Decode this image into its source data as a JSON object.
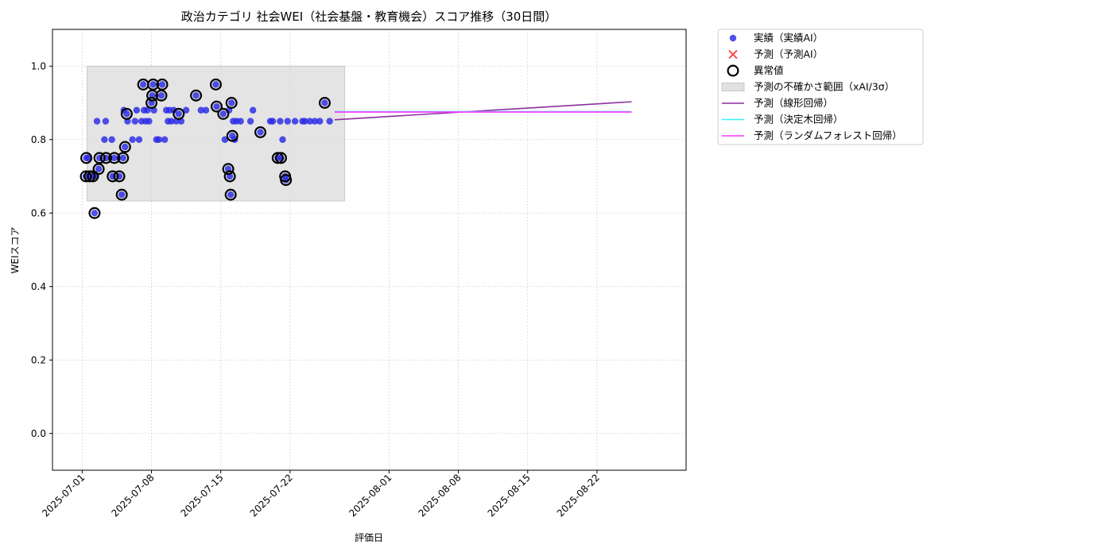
{
  "chart_data": {
    "type": "scatter",
    "title": "政治カテゴリ 社会WEI（社会基盤・教育機会）スコア推移（30日間）",
    "xlabel": "評価日",
    "ylabel": "WEIスコア",
    "xlim": [
      "2025-06-28",
      "2025-08-31"
    ],
    "ylim": [
      -0.1,
      1.1
    ],
    "x_ticks": [
      "2025-07-01",
      "2025-07-08",
      "2025-07-15",
      "2025-07-22",
      "2025-08-01",
      "2025-08-08",
      "2025-08-15",
      "2025-08-22"
    ],
    "y_ticks": [
      0.0,
      0.2,
      0.4,
      0.6,
      0.8,
      1.0
    ],
    "grid": true,
    "legend_position": "outside-top-right",
    "colors": {
      "actual": "#2a2ae6",
      "predicted": "#ff3b3b",
      "anomaly": "#000000",
      "uncertainty": "#d9d9d9",
      "linear": "#8b2f9c",
      "tree": "#35f0ff",
      "forest": "#ff35ff"
    },
    "legend": [
      {
        "key": "actual",
        "label": "実績（実績AI）"
      },
      {
        "key": "predicted",
        "label": "予測（予測AI）"
      },
      {
        "key": "anomaly",
        "label": "異常値"
      },
      {
        "key": "uncertainty",
        "label": "予測の不確かさ範囲（xAI/3σ）"
      },
      {
        "key": "linear",
        "label": "予測（線形回帰）"
      },
      {
        "key": "tree",
        "label": "予測（決定木回帰）"
      },
      {
        "key": "forest",
        "label": "予測（ランダムフォレスト回帰）"
      }
    ],
    "uncertainty_band": {
      "x": [
        "2025-07-01 12:00",
        "2025-07-27 12:00"
      ],
      "y": [
        0.633,
        1.0
      ]
    },
    "actual": [
      [
        "2025-07-01 09:00",
        0.7
      ],
      [
        "2025-07-01 10:00",
        0.75
      ],
      [
        "2025-07-01 14:00",
        0.75
      ],
      [
        "2025-07-01 18:00",
        0.7
      ],
      [
        "2025-07-02 02:00",
        0.7
      ],
      [
        "2025-07-02 06:00",
        0.6
      ],
      [
        "2025-07-02 09:00",
        0.7
      ],
      [
        "2025-07-02 12:00",
        0.85
      ],
      [
        "2025-07-02 16:00",
        0.72
      ],
      [
        "2025-07-02 18:00",
        0.75
      ],
      [
        "2025-07-03 06:00",
        0.8
      ],
      [
        "2025-07-03 09:00",
        0.85
      ],
      [
        "2025-07-03 10:00",
        0.75
      ],
      [
        "2025-07-04 00:00",
        0.8
      ],
      [
        "2025-07-04 06:00",
        0.75
      ],
      [
        "2025-07-04 02:00",
        0.7
      ],
      [
        "2025-07-04 18:00",
        0.7
      ],
      [
        "2025-07-05 00:00",
        0.65
      ],
      [
        "2025-07-05 03:00",
        0.75
      ],
      [
        "2025-07-05 05:00",
        0.88
      ],
      [
        "2025-07-05 08:00",
        0.78
      ],
      [
        "2025-07-05 12:00",
        0.87
      ],
      [
        "2025-07-05 14:00",
        0.85
      ],
      [
        "2025-07-06 02:00",
        0.8
      ],
      [
        "2025-07-06 08:00",
        0.85
      ],
      [
        "2025-07-06 12:00",
        0.88
      ],
      [
        "2025-07-06 18:00",
        0.8
      ],
      [
        "2025-07-07 00:00",
        0.85
      ],
      [
        "2025-07-07 04:00",
        0.95
      ],
      [
        "2025-07-07 06:00",
        0.88
      ],
      [
        "2025-07-07 10:00",
        0.85
      ],
      [
        "2025-07-07 14:00",
        0.88
      ],
      [
        "2025-07-07 18:00",
        0.85
      ],
      [
        "2025-07-08 00:00",
        0.9
      ],
      [
        "2025-07-08 02:00",
        0.92
      ],
      [
        "2025-07-08 04:00",
        0.95
      ],
      [
        "2025-07-08 06:00",
        0.88
      ],
      [
        "2025-07-08 12:00",
        0.8
      ],
      [
        "2025-07-08 18:00",
        0.8
      ],
      [
        "2025-07-09 00:00",
        0.92
      ],
      [
        "2025-07-09 02:00",
        0.95
      ],
      [
        "2025-07-09 08:00",
        0.8
      ],
      [
        "2025-07-09 12:00",
        0.88
      ],
      [
        "2025-07-09 16:00",
        0.85
      ],
      [
        "2025-07-09 20:00",
        0.88
      ],
      [
        "2025-07-10 00:00",
        0.85
      ],
      [
        "2025-07-10 06:00",
        0.88
      ],
      [
        "2025-07-10 12:00",
        0.85
      ],
      [
        "2025-07-10 18:00",
        0.87
      ],
      [
        "2025-07-11 00:00",
        0.85
      ],
      [
        "2025-07-11 12:00",
        0.88
      ],
      [
        "2025-07-12 12:00",
        0.92
      ],
      [
        "2025-07-13 00:00",
        0.88
      ],
      [
        "2025-07-13 12:00",
        0.88
      ],
      [
        "2025-07-14 12:00",
        0.95
      ],
      [
        "2025-07-14 14:00",
        0.89
      ],
      [
        "2025-07-15 06:00",
        0.87
      ],
      [
        "2025-07-15 10:00",
        0.8
      ],
      [
        "2025-07-15 18:00",
        0.72
      ],
      [
        "2025-07-15 20:00",
        0.88
      ],
      [
        "2025-07-15 22:00",
        0.7
      ],
      [
        "2025-07-16 00:00",
        0.65
      ],
      [
        "2025-07-16 02:00",
        0.9
      ],
      [
        "2025-07-16 04:00",
        0.81
      ],
      [
        "2025-07-16 06:00",
        0.85
      ],
      [
        "2025-07-16 10:00",
        0.8
      ],
      [
        "2025-07-16 14:00",
        0.85
      ],
      [
        "2025-07-17 00:00",
        0.85
      ],
      [
        "2025-07-18 00:00",
        0.85
      ],
      [
        "2025-07-18 06:00",
        0.88
      ],
      [
        "2025-07-19 00:00",
        0.82
      ],
      [
        "2025-07-20 00:00",
        0.85
      ],
      [
        "2025-07-20 06:00",
        0.85
      ],
      [
        "2025-07-20 18:00",
        0.75
      ],
      [
        "2025-07-21 00:00",
        0.85
      ],
      [
        "2025-07-21 02:00",
        0.75
      ],
      [
        "2025-07-21 06:00",
        0.8
      ],
      [
        "2025-07-21 12:00",
        0.7
      ],
      [
        "2025-07-21 14:00",
        0.69
      ],
      [
        "2025-07-21 18:00",
        0.85
      ],
      [
        "2025-07-22 12:00",
        0.85
      ],
      [
        "2025-07-23 06:00",
        0.85
      ],
      [
        "2025-07-23 12:00",
        0.85
      ],
      [
        "2025-07-24 00:00",
        0.85
      ],
      [
        "2025-07-24 12:00",
        0.85
      ],
      [
        "2025-07-25 00:00",
        0.85
      ],
      [
        "2025-07-25 12:00",
        0.9
      ],
      [
        "2025-07-26 00:00",
        0.85
      ]
    ],
    "anomalies": [
      [
        "2025-07-01 09:00",
        0.7
      ],
      [
        "2025-07-01 10:00",
        0.75
      ],
      [
        "2025-07-01 18:00",
        0.7
      ],
      [
        "2025-07-02 02:00",
        0.7
      ],
      [
        "2025-07-02 06:00",
        0.6
      ],
      [
        "2025-07-02 16:00",
        0.72
      ],
      [
        "2025-07-02 18:00",
        0.75
      ],
      [
        "2025-07-03 10:00",
        0.75
      ],
      [
        "2025-07-04 06:00",
        0.75
      ],
      [
        "2025-07-04 02:00",
        0.7
      ],
      [
        "2025-07-04 18:00",
        0.7
      ],
      [
        "2025-07-05 00:00",
        0.65
      ],
      [
        "2025-07-05 03:00",
        0.75
      ],
      [
        "2025-07-05 08:00",
        0.78
      ],
      [
        "2025-07-05 12:00",
        0.87
      ],
      [
        "2025-07-07 04:00",
        0.95
      ],
      [
        "2025-07-08 00:00",
        0.9
      ],
      [
        "2025-07-08 02:00",
        0.92
      ],
      [
        "2025-07-08 04:00",
        0.95
      ],
      [
        "2025-07-09 00:00",
        0.92
      ],
      [
        "2025-07-09 02:00",
        0.95
      ],
      [
        "2025-07-10 18:00",
        0.87
      ],
      [
        "2025-07-12 12:00",
        0.92
      ],
      [
        "2025-07-14 12:00",
        0.95
      ],
      [
        "2025-07-14 14:00",
        0.89
      ],
      [
        "2025-07-15 06:00",
        0.87
      ],
      [
        "2025-07-15 18:00",
        0.72
      ],
      [
        "2025-07-15 22:00",
        0.7
      ],
      [
        "2025-07-16 00:00",
        0.65
      ],
      [
        "2025-07-16 02:00",
        0.9
      ],
      [
        "2025-07-16 04:00",
        0.81
      ],
      [
        "2025-07-19 00:00",
        0.82
      ],
      [
        "2025-07-20 18:00",
        0.75
      ],
      [
        "2025-07-21 02:00",
        0.75
      ],
      [
        "2025-07-21 12:00",
        0.7
      ],
      [
        "2025-07-21 14:00",
        0.69
      ],
      [
        "2025-07-25 12:00",
        0.9
      ]
    ],
    "forecast": {
      "start": "2025-07-26 12:00",
      "end": "2025-08-25 12:00",
      "linear": [
        0.854,
        0.903
      ],
      "tree": [
        0.876,
        0.876
      ],
      "forest": [
        0.875,
        0.875
      ]
    }
  }
}
